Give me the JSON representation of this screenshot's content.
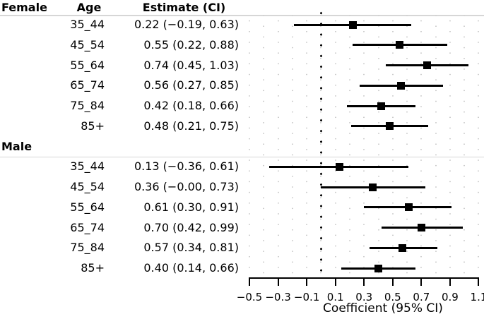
{
  "table": {
    "header": {
      "age": "Age",
      "estimate": "Estimate (CI)"
    }
  },
  "chart_data": {
    "type": "forest",
    "xlabel": "Coefficient (95% CI)",
    "xlim": [
      -0.5,
      1.1
    ],
    "grid_step": 0.1,
    "zero_line": 0,
    "grid_on": true,
    "xticks": [
      -0.5,
      -0.3,
      -0.1,
      0.1,
      0.3,
      0.5,
      0.7,
      0.9,
      1.1
    ],
    "xtick_labels": [
      "−0.5",
      "−0.3",
      "−0.1",
      "0.1",
      "0.3",
      "0.5",
      "0.7",
      "0.9",
      "1.1"
    ],
    "groups": [
      {
        "label": "Female",
        "rows": [
          {
            "age": "35_44",
            "estimate_label": "0.22 (−0.19, 0.63)",
            "est": 0.22,
            "lo": -0.19,
            "hi": 0.63
          },
          {
            "age": "45_54",
            "estimate_label": "0.55 (0.22, 0.88)",
            "est": 0.55,
            "lo": 0.22,
            "hi": 0.88
          },
          {
            "age": "55_64",
            "estimate_label": "0.74 (0.45, 1.03)",
            "est": 0.74,
            "lo": 0.45,
            "hi": 1.03
          },
          {
            "age": "65_74",
            "estimate_label": "0.56 (0.27, 0.85)",
            "est": 0.56,
            "lo": 0.27,
            "hi": 0.85
          },
          {
            "age": "75_84",
            "estimate_label": "0.42 (0.18, 0.66)",
            "est": 0.42,
            "lo": 0.18,
            "hi": 0.66
          },
          {
            "age": "85+",
            "estimate_label": "0.48 (0.21, 0.75)",
            "est": 0.48,
            "lo": 0.21,
            "hi": 0.75
          }
        ]
      },
      {
        "label": "Male",
        "rows": [
          {
            "age": "35_44",
            "estimate_label": "0.13 (−0.36, 0.61)",
            "est": 0.13,
            "lo": -0.36,
            "hi": 0.61
          },
          {
            "age": "45_54",
            "estimate_label": "0.36 (−0.00, 0.73)",
            "est": 0.36,
            "lo": -0.0,
            "hi": 0.73
          },
          {
            "age": "55_64",
            "estimate_label": "0.61 (0.30, 0.91)",
            "est": 0.61,
            "lo": 0.3,
            "hi": 0.91
          },
          {
            "age": "65_74",
            "estimate_label": "0.70 (0.42, 0.99)",
            "est": 0.7,
            "lo": 0.42,
            "hi": 0.99
          },
          {
            "age": "75_84",
            "estimate_label": "0.57 (0.34, 0.81)",
            "est": 0.57,
            "lo": 0.34,
            "hi": 0.81
          },
          {
            "age": "85+",
            "estimate_label": "0.40 (0.14, 0.66)",
            "est": 0.4,
            "lo": 0.14,
            "hi": 0.66
          }
        ]
      }
    ]
  },
  "colors": {
    "ink": "#000000",
    "grid_dot": "#c9c9c9",
    "separator": "#d6d6d6",
    "background": "#ffffff"
  }
}
